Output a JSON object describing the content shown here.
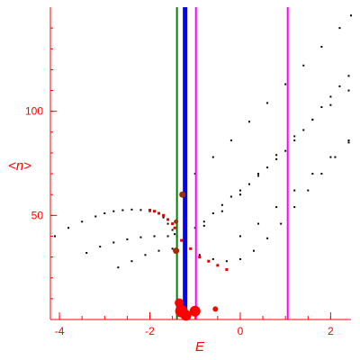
{
  "chart_data": {
    "type": "scatter",
    "xlabel": "E",
    "ylabel": "<n>",
    "xlim": [
      -4.2,
      2.45
    ],
    "ylim": [
      0,
      150
    ],
    "x_ticks": [
      -4,
      -2,
      0,
      2
    ],
    "y_ticks": [
      50,
      100
    ],
    "vertical_lines": [
      {
        "x": -1.4,
        "color": "#008000"
      },
      {
        "x": -1.22,
        "color": "#0000ff",
        "thick": true
      },
      {
        "x": -0.98,
        "color": "#ff00ff"
      },
      {
        "x": 1.05,
        "color": "#ff00ff"
      }
    ],
    "colors": {
      "axis": "#ff0000",
      "points": "#000000",
      "highlight": "#e00000",
      "big_marker": "#ff0000",
      "dark_marker": "#9b3000"
    },
    "series": [
      {
        "role": "band-1",
        "x": [
          -4.1,
          -3.8,
          -3.5,
          -3.2,
          -3.0,
          -2.8,
          -2.6,
          -2.4,
          -2.2,
          -2.0,
          -1.8,
          -1.7,
          -1.6,
          -1.5,
          -1.45
        ],
        "y": [
          40,
          44,
          47,
          49.5,
          51,
          52,
          52.5,
          52.8,
          52.6,
          52,
          51,
          49,
          46,
          43,
          41
        ]
      },
      {
        "role": "band-2",
        "x": [
          -3.4,
          -3.1,
          -2.8,
          -2.5,
          -2.2,
          -1.9,
          -1.6,
          -1.4,
          -1.2,
          -1.0,
          -0.8,
          -0.6,
          -0.4,
          -0.2,
          0.0,
          0.2,
          0.4,
          0.6,
          0.8,
          1.0,
          1.2,
          1.4,
          1.6,
          1.8,
          2.0,
          2.2,
          2.4
        ],
        "y": [
          32,
          35,
          37,
          38.5,
          39.5,
          40,
          40,
          40,
          42,
          44,
          47,
          51,
          55,
          59,
          62,
          65,
          69,
          73,
          77,
          81,
          86,
          91,
          96,
          102,
          107,
          112,
          117
        ]
      },
      {
        "role": "band-3",
        "x": [
          -2.7,
          -2.4,
          -2.1,
          -1.8,
          -1.5,
          -1.2,
          -0.9,
          -0.6,
          -0.3,
          0.0,
          0.3,
          0.6,
          0.9,
          1.2,
          1.5,
          1.8,
          2.1,
          2.4
        ],
        "y": [
          25,
          28,
          31,
          33,
          34,
          33,
          31,
          29,
          28,
          29,
          33,
          39,
          46,
          54,
          62,
          70,
          78,
          85
        ]
      },
      {
        "role": "band-upper",
        "x": [
          -1.0,
          -0.6,
          -0.2,
          0.2,
          0.6,
          1.0,
          1.4,
          1.8,
          2.2,
          2.45
        ],
        "y": [
          70,
          78,
          86,
          95,
          104,
          113,
          122,
          131,
          140,
          146
        ]
      },
      {
        "role": "band-mid",
        "x": [
          -0.8,
          -0.4,
          0.0,
          0.4,
          0.8,
          1.2,
          1.6,
          2.0,
          2.4
        ],
        "y": [
          45,
          52,
          60,
          70,
          79,
          88,
          96,
          103,
          110
        ]
      },
      {
        "role": "band-low",
        "x": [
          0.0,
          0.4,
          0.8,
          1.2,
          1.6,
          2.0,
          2.4
        ],
        "y": [
          40,
          46,
          54,
          62,
          70,
          78,
          86
        ]
      }
    ],
    "highlighted": {
      "x": [
        -2.0,
        -1.9,
        -1.8,
        -1.7,
        -1.6,
        -1.5,
        -1.45,
        -1.3,
        -1.1,
        -0.9,
        -0.7,
        -0.5,
        -0.3
      ],
      "y": [
        52.5,
        52,
        51,
        50,
        48,
        46,
        44,
        38,
        34,
        30,
        28,
        26,
        24
      ]
    },
    "big_markers": [
      {
        "x": -1.3,
        "y": 4,
        "size": 7
      },
      {
        "x": -1.2,
        "y": 2,
        "size": 6
      },
      {
        "x": -1.0,
        "y": 4,
        "size": 6
      },
      {
        "x": -1.35,
        "y": 8,
        "size": 5
      },
      {
        "x": -0.55,
        "y": 5,
        "size": 3
      }
    ],
    "dark_markers": [
      {
        "x": -1.28,
        "y": 60,
        "size": 3.5
      },
      {
        "x": -1.42,
        "y": 33,
        "size": 3.5
      },
      {
        "x": -1.42,
        "y": 47,
        "size": 2.5
      }
    ]
  }
}
